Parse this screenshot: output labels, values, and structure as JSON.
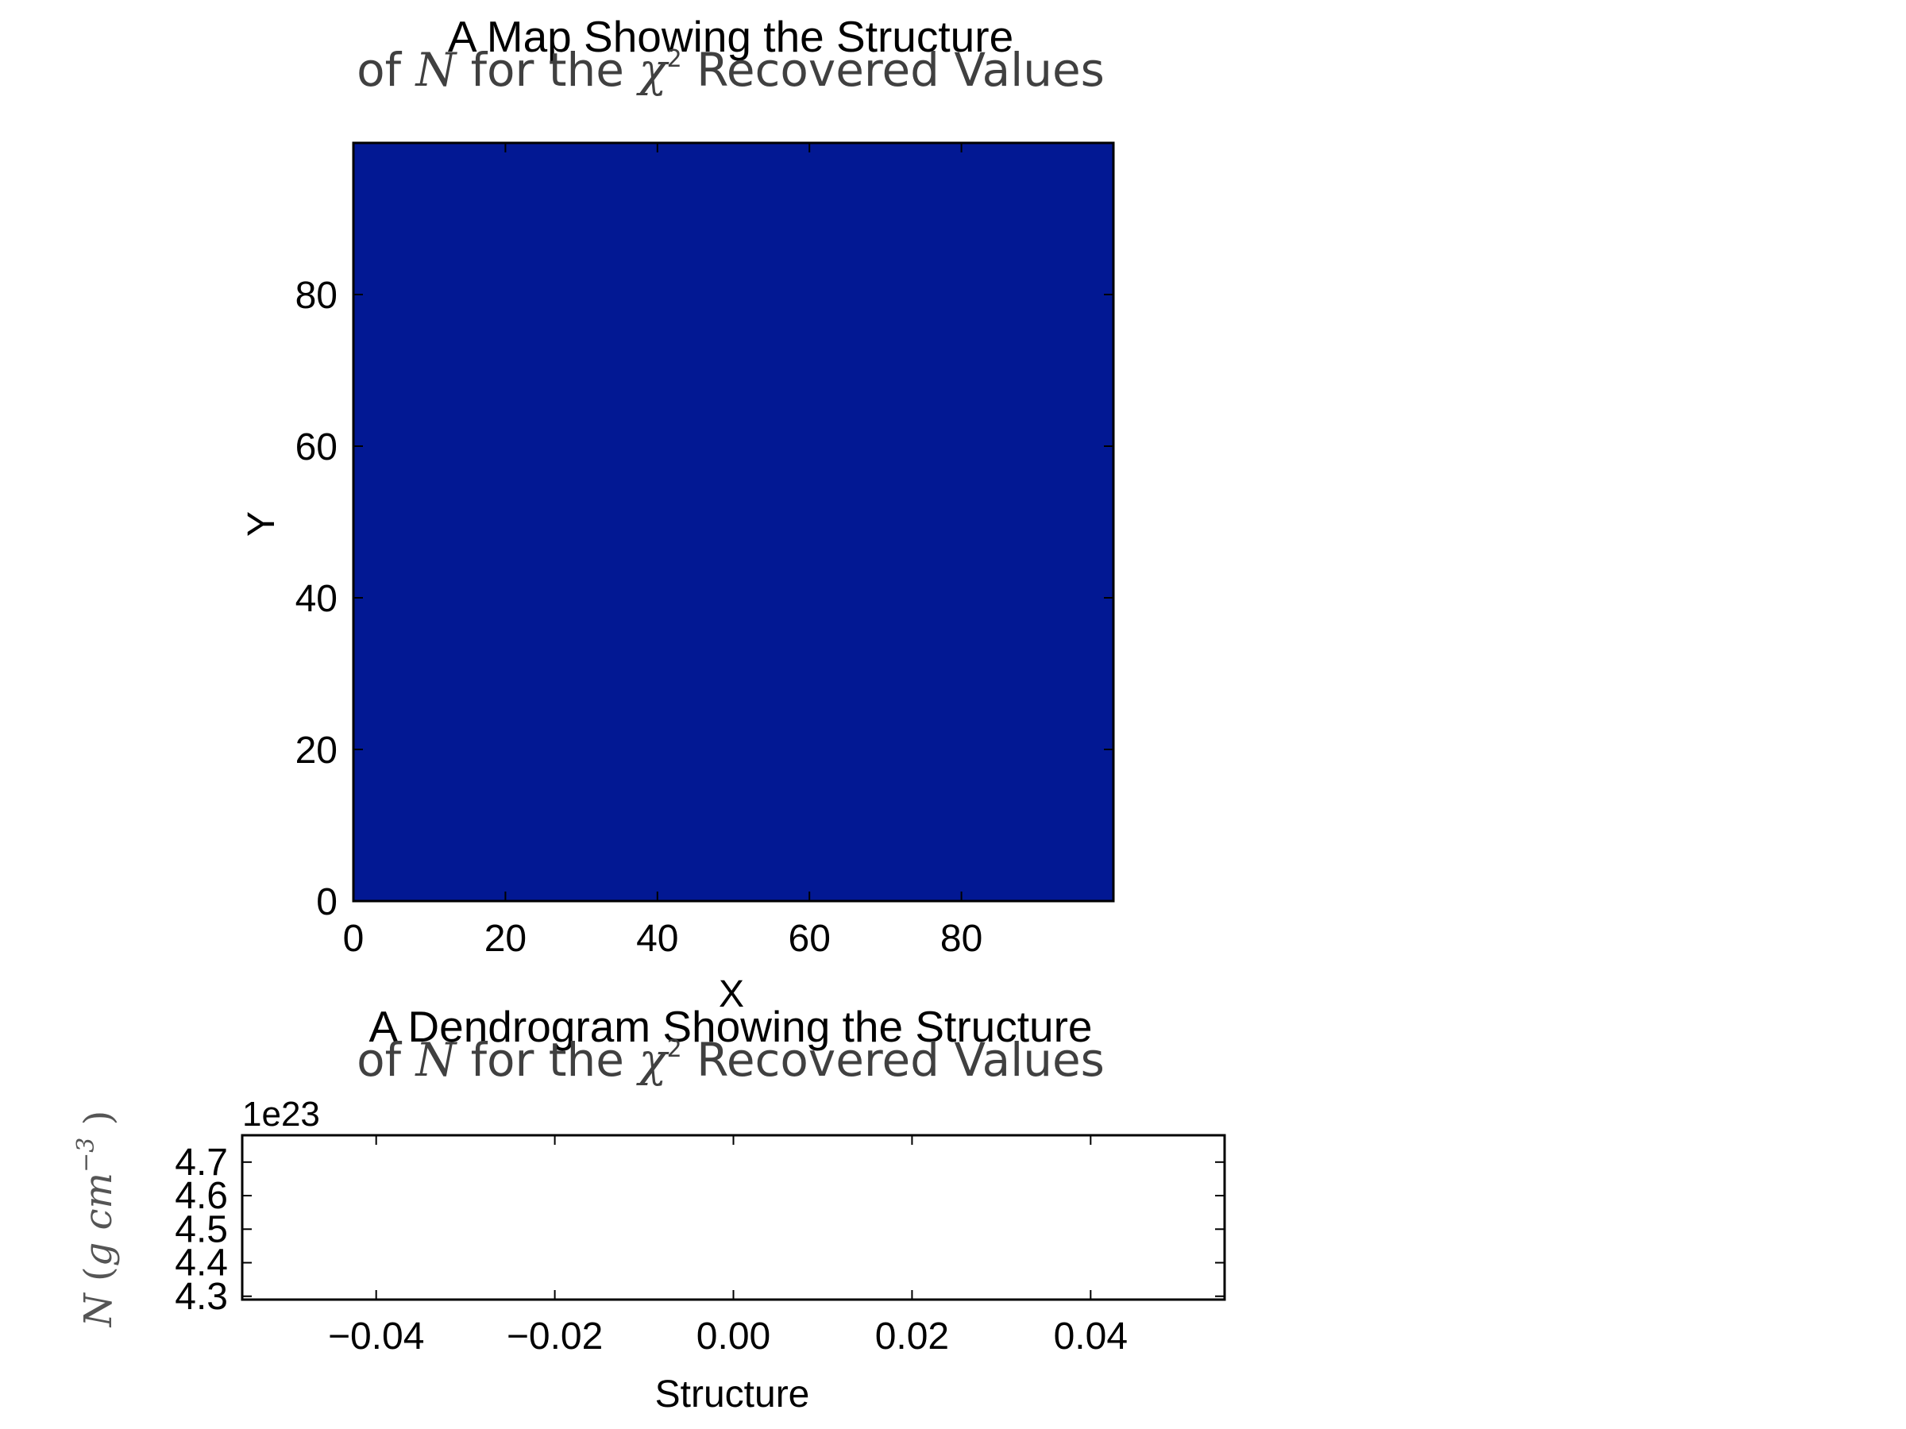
{
  "chart_data": [
    {
      "type": "heatmap",
      "title": {
        "line1": "A Map Showing the Structure",
        "line2_prefix": "of ",
        "line2_symbol": "N",
        "line2_mid": " for the ",
        "line2_chi": "χ",
        "line2_sup": "2",
        "line2_suffix": "  Recovered Values"
      },
      "xlabel": "X",
      "ylabel": "Y",
      "xlim": [
        0,
        100
      ],
      "ylim": [
        0,
        100
      ],
      "xticks": [
        0,
        20,
        40,
        60,
        80
      ],
      "yticks": [
        0,
        20,
        40,
        60,
        80
      ],
      "fill_color": "#021893",
      "values": "uniform"
    },
    {
      "type": "line",
      "title": {
        "line1": "A Dendrogram Showing the Structure",
        "line2_prefix": "of ",
        "line2_symbol": "N",
        "line2_mid": " for the ",
        "line2_chi": "χ",
        "line2_sup": "2",
        "line2_suffix": "  Recovered Values"
      },
      "xlabel": "Structure",
      "ylabel": {
        "symbol": "N",
        "unit_open": " (",
        "unit": "g cm",
        "exp": "−3",
        "unit_close": " )"
      },
      "y_offset_label": "1e23",
      "xlim": [
        -0.055,
        0.055
      ],
      "ylim": [
        4.29,
        4.78
      ],
      "xticks": [
        -0.04,
        -0.02,
        0.0,
        0.02,
        0.04
      ],
      "xtick_labels": [
        "−0.04",
        "−0.02",
        "0.00",
        "0.02",
        "0.04"
      ],
      "yticks": [
        4.3,
        4.4,
        4.5,
        4.6,
        4.7
      ],
      "ytick_labels": [
        "4.3",
        "4.4",
        "4.5",
        "4.6",
        "4.7"
      ],
      "series": []
    }
  ]
}
